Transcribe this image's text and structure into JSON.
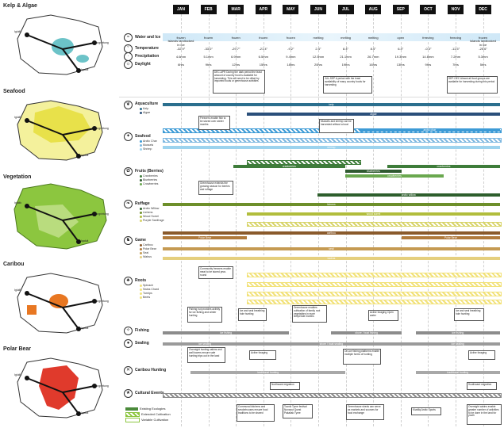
{
  "maps": [
    {
      "title": "Kelp & Algae",
      "color": "#6cc3c8",
      "top": 4,
      "labels": [
        "Iglulik",
        "Pangnirtung",
        "Iqaluit"
      ]
    },
    {
      "title": "Seafood",
      "color": "#e8e14a",
      "top": 112,
      "labels": [
        "Iglulik",
        "Pangnirtung",
        "Iqaluit"
      ]
    },
    {
      "title": "Vegetation",
      "color": "#8cc63f",
      "top": 220,
      "labels": [
        "Iglulik",
        "Pangnirtung",
        "Iqaluit"
      ]
    },
    {
      "title": "Caribou",
      "color": "#e87722",
      "top": 330,
      "labels": [
        "Iglulik",
        "Pangnirtung",
        "Iqaluit"
      ]
    },
    {
      "title": "Polar Bear",
      "color": "#e03a2c",
      "top": 437,
      "labels": [
        "Iglulik",
        "Pangnirtung",
        "Iqaluit"
      ]
    }
  ],
  "months": [
    "JAN",
    "FEB",
    "MAR",
    "APR",
    "MAY",
    "JUN",
    "JUL",
    "AUG",
    "SEP",
    "OCT",
    "NOV",
    "DEC"
  ],
  "climate": {
    "water_label": "Water and Ice",
    "water": [
      "frozen",
      "frozen",
      "frozen",
      "frozen",
      "frozen",
      "melting",
      "melting",
      "melting",
      "open",
      "freezing",
      "freezing",
      "frozen"
    ],
    "water_sub": "islands landlocked in ice",
    "temp_label": "Temperature",
    "temp": [
      "-32.9°",
      "-33.0°",
      "-29.7°",
      "-21.4°",
      "-9.2°",
      "2.4°",
      "8.4°",
      "8.4°",
      "6.4°",
      "-0.3°",
      "-11.5°",
      "-25.6°"
    ],
    "precip_label": "Precipitation",
    "precip": [
      "4.6mm",
      "5.1mm",
      "6.9mm",
      "6.5mm",
      "9.4mm",
      "12.5mm",
      "21.1mm",
      "26.7mm",
      "19.3mm",
      "14.6mm",
      "7.2mm",
      "5.3mm"
    ],
    "daylight_label": "Daylight",
    "daylight": [
      "6hrs",
      "9hrs",
      "12hrs",
      "15hrs",
      "18hrs",
      "20hrs",
      "19hrs",
      "16hrs",
      "13hrs",
      "9hrs",
      "7hrs",
      "5hrs"
    ]
  },
  "notes": {
    "decapr": "DEC-APR During the dark period the least amount of country food is available for harvesting. This will need to be offset by imported foods or greenhouse activities",
    "julsep": "JUL-SEP A period with the least availability of many country foods for harvesting",
    "sepdec": "SEP-DEC Almost all food groups are available for harvesting during this period"
  },
  "sections": [
    {
      "name": "Aquaculture",
      "items": [
        "Kelp",
        "Algae"
      ]
    },
    {
      "name": "Seafood",
      "items": [
        "Arctic Char",
        "Mussels",
        "Shrimp"
      ]
    },
    {
      "name": "Fruits (Berries)",
      "items": [
        "Cranberries",
        "Blueberries",
        "Crowberries"
      ]
    },
    {
      "name": "Ruffage",
      "items": [
        "Arctic Willow",
        "Lichens",
        "Wood Sorrel",
        "Purple Saxifrage"
      ]
    },
    {
      "name": "Game",
      "items": [
        "Caribou",
        "Polar Bear",
        "Seal",
        "Walrus"
      ]
    },
    {
      "name": "Roots",
      "items": [
        "Spinach",
        "Swiss Chard",
        "Turnips",
        "Beets"
      ]
    },
    {
      "name": "Fishing",
      "items": []
    },
    {
      "name": "Sealing",
      "items": []
    },
    {
      "name": "Caribou Hunting",
      "items": []
    },
    {
      "name": "Cultural Events",
      "items": []
    }
  ],
  "bars": {
    "kelp": "kelp",
    "algae": "algae",
    "arctic_char": "arctic char",
    "shrimp": "shrimp",
    "cranberries": "cranberries",
    "cranberries2": "cranberries",
    "blueberries": "blueberries",
    "crowberries": "crowberries",
    "arctic_willow": "arctic willow",
    "lichens": "lichens",
    "wood_sorrel": "wood sorrel",
    "purple_saxifrage": "purple saxifrage",
    "caribou": "caribou",
    "polar_bear": "Polar Bear",
    "polar_bear2": "Polar Bear",
    "seal": "seal",
    "walrus": "walrus",
    "ice_fishing": "ice fishing",
    "shore_fishing": "shore / boat fishing",
    "ice_fishing2": "ice fishing",
    "ice_sealing": "ice sealing",
    "shore_sealing": "shore / boat sealing",
    "ice_sealing2": "ice sealing",
    "trad_hunting": "traditional hunting",
    "trad_hunting2": "traditional hunting"
  },
  "boxes": {
    "freezers": "Freezers enable fish to be stored over winter months",
    "mussels": "Mussels and shrimp can be harvested without a boat",
    "greenhouse1": "Greenhouse extends the growing season for berries and ruffage",
    "community_freezers": "Community freezers enable meat to be stored year-round",
    "fishing1": "Fishing hut provides activity for ice fishing and winter hunting",
    "ice_seal": "Ice and seal breathing hole hunting",
    "greenhouse2": "Greenhouse enables cultivation of family root vegetables in more temperate months",
    "active_fishing": "Active foraging Open water",
    "ice_seal2": "Ice and seal breathing hole hunting",
    "overnight": "Overnight hunting cabins and wall towers ensure safe hunting trips out in the land",
    "active_foraging": "Active foraging",
    "fishing_platforms": "On-ice fishing platforms enable multiple forms of hunting",
    "active_foraging2": "Active foraging",
    "northward": "Northward migration",
    "southward": "Southward migration",
    "community_kitchens": "Communal kitchens and smokehouses ensure food traditions to be shared",
    "toonik": "Toonik Tyme festival Nunavut Quest Pakallak Tyme",
    "greenhouse_sheds": "Greenhouse sheds can serve as markets and sources for food exchange",
    "kivalliq": "Kivalliq Arctic Sports",
    "overnight2": "Overnight cabins enable greater number of activities to be done in the land for youth"
  },
  "legend": [
    "Existing Ecologies",
    "Extended Cultivation",
    "Variable Cultivation"
  ],
  "colors": {
    "kelp": "#2b6f8e",
    "algae": "#2a4f7a",
    "char": "#3d9bd6",
    "mussel": "#7fb8e0",
    "shrimp": "#9cd3ee",
    "cran": "#3e7c3a",
    "blue": "#2f5a30",
    "crow": "#6aa84f",
    "willow": "#2d5e2c",
    "lichen": "#6d8f2a",
    "sorrel": "#b1bd3c",
    "saxi": "#d8d46a",
    "caribou": "#8a5a2b",
    "bear": "#b07a3c",
    "seal": "#c59a52",
    "walrus": "#e5cf7d",
    "roots": "#f2e27a",
    "fishing": "#8c8c8c",
    "sealing": "#9a9a9a",
    "hunting": "#a8a8a8"
  }
}
